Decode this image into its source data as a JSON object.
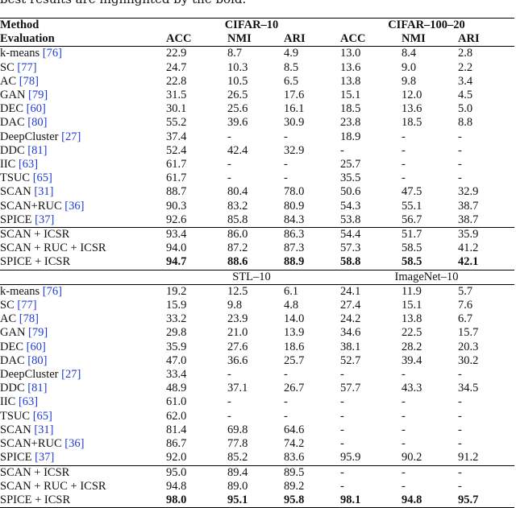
{
  "caption": {
    "line1": "",
    "line2": "best results are highlighted by the bold."
  },
  "header": {
    "method_label": "Method",
    "evaluation_label": "Evaluation",
    "metrics": [
      "ACC",
      "NMI",
      "ARI",
      "ACC",
      "NMI",
      "ARI"
    ]
  },
  "blocks": [
    {
      "dataset_left": "CIFAR–10",
      "dataset_right": "CIFAR–100–20",
      "baselines": [
        {
          "name": "k-means",
          "cite": "[76]",
          "vals": [
            "22.9",
            "8.7",
            "4.9",
            "13.0",
            "8.4",
            "2.8"
          ]
        },
        {
          "name": "SC",
          "cite": "[77]",
          "vals": [
            "24.7",
            "10.3",
            "8.5",
            "13.6",
            "9.0",
            "2.2"
          ]
        },
        {
          "name": "AC",
          "cite": "[78]",
          "vals": [
            "22.8",
            "10.5",
            "6.5",
            "13.8",
            "9.8",
            "3.4"
          ]
        },
        {
          "name": "GAN",
          "cite": "[79]",
          "vals": [
            "31.5",
            "26.5",
            "17.6",
            "15.1",
            "12.0",
            "4.5"
          ]
        },
        {
          "name": "DEC",
          "cite": "[60]",
          "vals": [
            "30.1",
            "25.6",
            "16.1",
            "18.5",
            "13.6",
            "5.0"
          ]
        },
        {
          "name": "DAC",
          "cite": "[80]",
          "vals": [
            "55.2",
            "39.6",
            "30.9",
            "23.8",
            "18.5",
            "8.8"
          ]
        },
        {
          "name": "DeepCluster",
          "cite": "[27]",
          "vals": [
            "37.4",
            "-",
            "-",
            "18.9",
            "-",
            "-"
          ]
        },
        {
          "name": "DDC",
          "cite": "[81]",
          "vals": [
            "52.4",
            "42.4",
            "32.9",
            "-",
            "-",
            "-"
          ]
        },
        {
          "name": "IIC",
          "cite": "[63]",
          "vals": [
            "61.7",
            "-",
            "-",
            "25.7",
            "-",
            "-"
          ]
        },
        {
          "name": "TSUC",
          "cite": "[65]",
          "vals": [
            "61.7",
            "-",
            "-",
            "35.5",
            "-",
            "-"
          ]
        },
        {
          "name": "SCAN",
          "cite": "[31]",
          "vals": [
            "88.7",
            "80.4",
            "78.0",
            "50.6",
            "47.5",
            "32.9"
          ]
        },
        {
          "name": "SCAN+RUC",
          "cite": "[36]",
          "vals": [
            "90.3",
            "83.2",
            "80.9",
            "54.3",
            "55.1",
            "38.7"
          ]
        },
        {
          "name": "SPICE",
          "cite": "[37]",
          "vals": [
            "92.6",
            "85.8",
            "84.3",
            "53.8",
            "56.7",
            "38.7"
          ]
        }
      ],
      "ours": [
        {
          "name": "SCAN + ICSR",
          "vals": [
            "93.4",
            "86.0",
            "86.3",
            "54.4",
            "51.7",
            "35.9"
          ],
          "bold": [
            false,
            false,
            false,
            false,
            false,
            false
          ]
        },
        {
          "name": "SCAN + RUC + ICSR",
          "vals": [
            "94.0",
            "87.2",
            "87.3",
            "57.3",
            "58.5",
            "41.2"
          ],
          "bold": [
            false,
            false,
            false,
            false,
            false,
            false
          ]
        },
        {
          "name": "SPICE + ICSR",
          "vals": [
            "94.7",
            "88.6",
            "88.9",
            "58.8",
            "58.5",
            "42.1"
          ],
          "bold": [
            true,
            true,
            true,
            true,
            true,
            true
          ]
        }
      ]
    },
    {
      "dataset_left": "STL–10",
      "dataset_right": "ImageNet–10",
      "baselines": [
        {
          "name": "k-means",
          "cite": "[76]",
          "vals": [
            "19.2",
            "12.5",
            "6.1",
            "24.1",
            "11.9",
            "5.7"
          ]
        },
        {
          "name": "SC",
          "cite": "[77]",
          "vals": [
            "15.9",
            "9.8",
            "4.8",
            "27.4",
            "15.1",
            "7.6"
          ]
        },
        {
          "name": "AC",
          "cite": "[78]",
          "vals": [
            "33.2",
            "23.9",
            "14.0",
            "24.2",
            "13.8",
            "6.7"
          ]
        },
        {
          "name": "GAN",
          "cite": "[79]",
          "vals": [
            "29.8",
            "21.0",
            "13.9",
            "34.6",
            "22.5",
            "15.7"
          ]
        },
        {
          "name": "DEC",
          "cite": "[60]",
          "vals": [
            "35.9",
            "27.6",
            "18.6",
            "38.1",
            "28.2",
            "20.3"
          ]
        },
        {
          "name": "DAC",
          "cite": "[80]",
          "vals": [
            "47.0",
            "36.6",
            "25.7",
            "52.7",
            "39.4",
            "30.2"
          ]
        },
        {
          "name": "DeepCluster",
          "cite": "[27]",
          "vals": [
            "33.4",
            "-",
            "-",
            "-",
            "-",
            "-"
          ]
        },
        {
          "name": "DDC",
          "cite": "[81]",
          "vals": [
            "48.9",
            "37.1",
            "26.7",
            "57.7",
            "43.3",
            "34.5"
          ]
        },
        {
          "name": "IIC",
          "cite": "[63]",
          "vals": [
            "61.0",
            "-",
            "-",
            "-",
            "-",
            "-"
          ]
        },
        {
          "name": "TSUC",
          "cite": "[65]",
          "vals": [
            "62.0",
            "-",
            "-",
            "-",
            "-",
            "-"
          ]
        },
        {
          "name": "SCAN",
          "cite": "[31]",
          "vals": [
            "81.4",
            "69.8",
            "64.6",
            "-",
            "-",
            "-"
          ]
        },
        {
          "name": "SCAN+RUC",
          "cite": "[36]",
          "vals": [
            "86.7",
            "77.8",
            "74.2",
            "-",
            "-",
            "-"
          ]
        },
        {
          "name": "SPICE",
          "cite": "[37]",
          "vals": [
            "92.0",
            "85.2",
            "83.6",
            "95.9",
            "90.2",
            "91.2"
          ]
        }
      ],
      "ours": [
        {
          "name": "SCAN + ICSR",
          "vals": [
            "95.0",
            "89.4",
            "89.5",
            "-",
            "-",
            "-"
          ],
          "bold": [
            false,
            false,
            false,
            false,
            false,
            false
          ]
        },
        {
          "name": "SCAN + RUC + ICSR",
          "vals": [
            "94.8",
            "89.0",
            "89.2",
            "-",
            "-",
            "-"
          ],
          "bold": [
            false,
            false,
            false,
            false,
            false,
            false
          ]
        },
        {
          "name": "SPICE + ICSR",
          "vals": [
            "98.0",
            "95.1",
            "95.8",
            "98.1",
            "94.8",
            "95.7"
          ],
          "bold": [
            true,
            true,
            true,
            true,
            true,
            true
          ]
        }
      ]
    }
  ]
}
